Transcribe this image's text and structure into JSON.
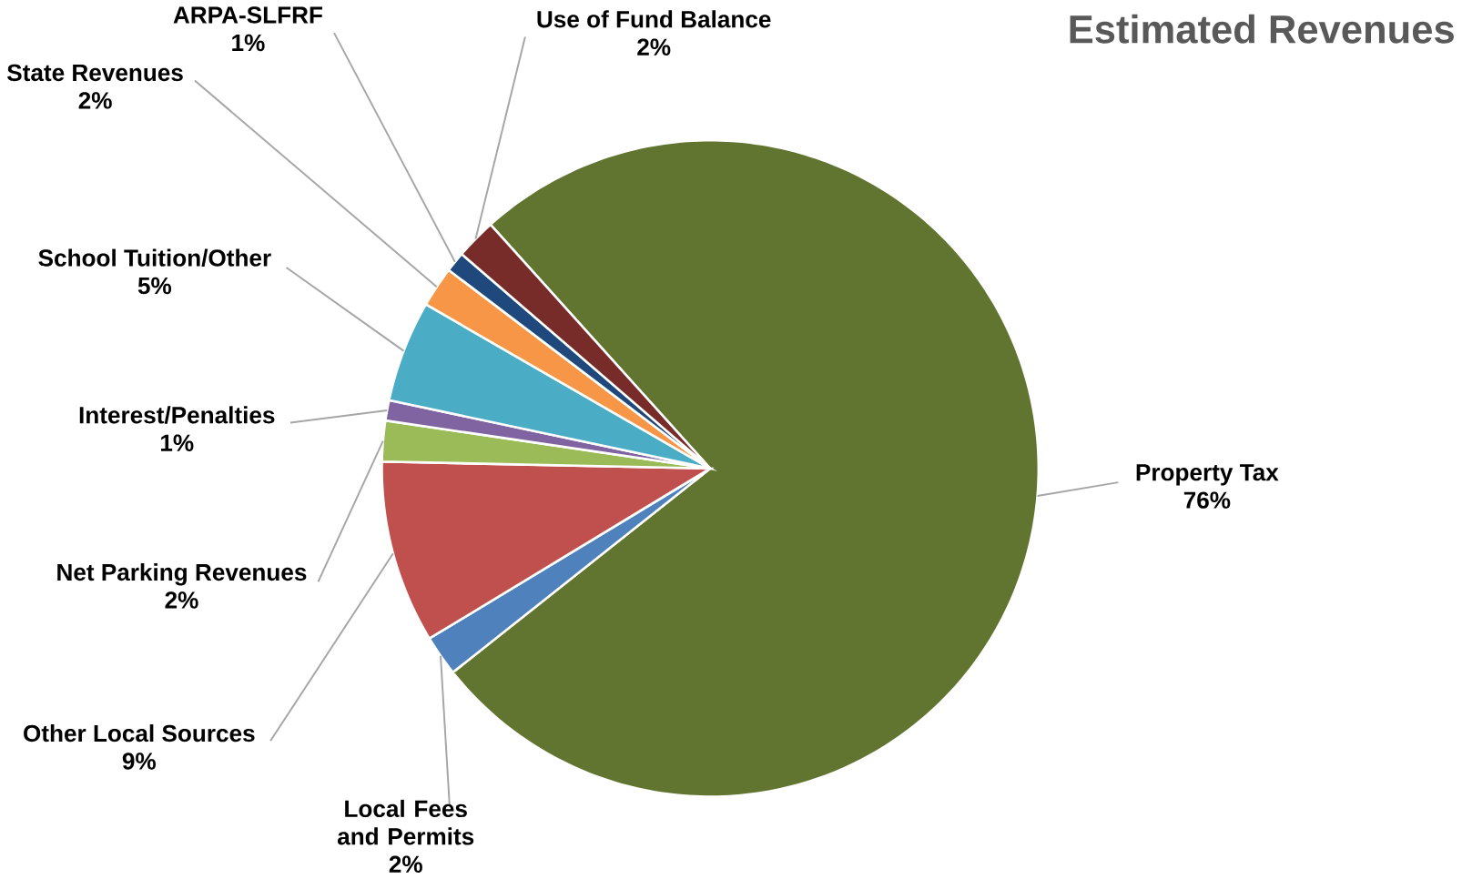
{
  "chart_data": {
    "type": "pie",
    "title": "Estimated Revenues",
    "categories": [
      "Property Tax",
      "Local Fees and Permits",
      "Other Local Sources",
      "Net Parking Revenues",
      "Interest/Penalties",
      "School Tuition/Other",
      "State Revenues",
      "ARPA-SLFRF",
      "Use of Fund Balance"
    ],
    "values": [
      76,
      2,
      9,
      2,
      1,
      5,
      2,
      1,
      2
    ],
    "value_labels": [
      "76%",
      "2%",
      "9%",
      "2%",
      "1%",
      "5%",
      "2%",
      "1%",
      "2%"
    ],
    "colors": [
      "#617530",
      "#4f81bd",
      "#c0504d",
      "#9bbb59",
      "#8064a2",
      "#4bacc6",
      "#f79646",
      "#1f497d",
      "#772c2a"
    ]
  }
}
